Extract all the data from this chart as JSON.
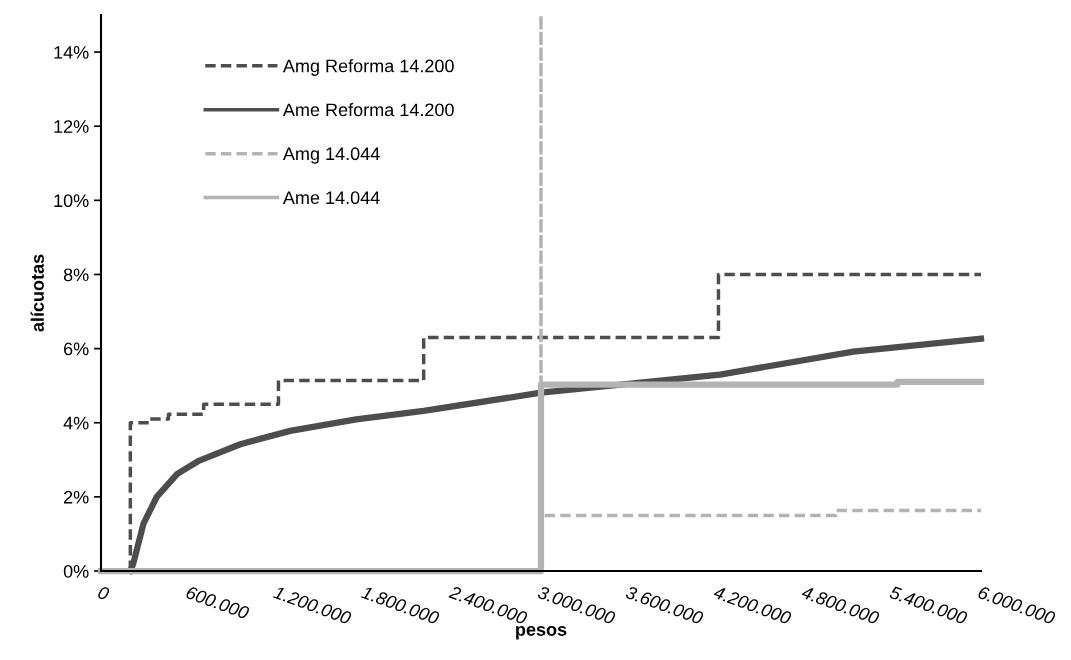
{
  "chart_data": {
    "type": "line",
    "xlabel": "pesos",
    "ylabel": "alícuotas",
    "xlim": [
      0,
      6000000
    ],
    "ylim": [
      0,
      15
    ],
    "xticks": [
      {
        "value": 0,
        "label": "0"
      },
      {
        "value": 600000,
        "label": "600.000"
      },
      {
        "value": 1200000,
        "label": "1.200.000"
      },
      {
        "value": 1800000,
        "label": "1.800.000"
      },
      {
        "value": 2400000,
        "label": "2.400.000"
      },
      {
        "value": 3000000,
        "label": "3.000.000"
      },
      {
        "value": 3600000,
        "label": "3.600.000"
      },
      {
        "value": 4200000,
        "label": "4.200.000"
      },
      {
        "value": 4800000,
        "label": "4.800.000"
      },
      {
        "value": 5400000,
        "label": "5.400.000"
      },
      {
        "value": 6000000,
        "label": "6.000.000"
      }
    ],
    "yticks": [
      {
        "value": 0,
        "label": "0%"
      },
      {
        "value": 2,
        "label": "2%"
      },
      {
        "value": 4,
        "label": "4%"
      },
      {
        "value": 6,
        "label": "6%"
      },
      {
        "value": 8,
        "label": "8%"
      },
      {
        "value": 10,
        "label": "10%"
      },
      {
        "value": 12,
        "label": "12%"
      },
      {
        "value": 14,
        "label": "14%"
      }
    ],
    "grid": false,
    "legend": "top left",
    "marker": "none",
    "series": [
      {
        "name": "Amg Reforma 14.200",
        "color": "#4d4d4d",
        "line_style": "dashed",
        "x": [
          200000,
          200000,
          330000,
          330000,
          460000,
          460000,
          700000,
          700000,
          1210000,
          1210000,
          2200000,
          2200000,
          4210000,
          4210000,
          6000000
        ],
        "values": [
          0,
          4.0,
          4.0,
          4.1,
          4.1,
          4.23,
          4.23,
          4.5,
          4.5,
          5.14,
          5.14,
          6.3,
          6.3,
          8.0,
          8.0
        ]
      },
      {
        "name": "Ame Reforma 14.200",
        "color": "#4d4d4d",
        "line_style": "solid",
        "x": [
          200000,
          220000,
          290000,
          380000,
          520000,
          670000,
          950000,
          1290000,
          1740000,
          2200000,
          3000000,
          4220000,
          5130000,
          6000000
        ],
        "values": [
          0,
          0.2,
          1.28,
          2.0,
          2.62,
          2.98,
          3.42,
          3.78,
          4.09,
          4.32,
          4.81,
          5.3,
          5.92,
          6.27
        ]
      },
      {
        "name": "Amg 14.044",
        "color": "#b3b3b3",
        "line_style": "dashed",
        "x": [
          0,
          3000000,
          3000000,
          3000000,
          5010000,
          5010000,
          6000000
        ],
        "values": [
          0,
          0,
          15,
          1.5,
          1.5,
          1.63,
          1.63
        ]
      },
      {
        "name": "Ame 14.044",
        "color": "#b3b3b3",
        "line_style": "solid",
        "x": [
          0,
          3000000,
          3000000,
          5430000,
          5430000,
          6000000
        ],
        "values": [
          0,
          0,
          5.03,
          5.03,
          5.1,
          5.1
        ]
      }
    ]
  }
}
